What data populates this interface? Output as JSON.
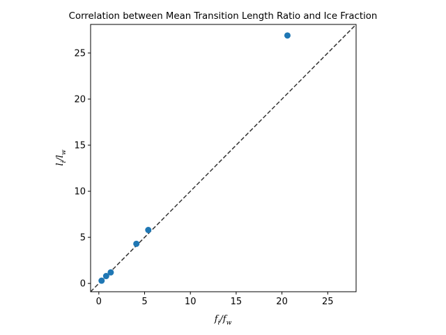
{
  "chart_data": {
    "type": "scatter",
    "title": "Correlation between Mean Transition Length Ratio and Ice Fraction",
    "xlabel": {
      "main": "f",
      "sub1": "i",
      "sep": "/f",
      "sub2": "w"
    },
    "ylabel": {
      "main": "l",
      "sub1": "i",
      "sep": "/l",
      "sub2": "w"
    },
    "xlim": [
      -0.9,
      28.1
    ],
    "ylim": [
      -0.9,
      28.1
    ],
    "xticks": [
      0,
      5,
      10,
      15,
      20,
      25
    ],
    "yticks": [
      0,
      5,
      10,
      15,
      20,
      25
    ],
    "grid": false,
    "reference_line": {
      "style": "dashed",
      "color": "#333333",
      "relation": "y = x"
    },
    "marker_color": "#1f77b4",
    "points": [
      {
        "x": 0.3,
        "y": 0.3
      },
      {
        "x": 0.8,
        "y": 0.8
      },
      {
        "x": 1.3,
        "y": 1.2
      },
      {
        "x": 4.1,
        "y": 4.3
      },
      {
        "x": 5.4,
        "y": 5.8
      },
      {
        "x": 20.6,
        "y": 26.9
      }
    ]
  }
}
